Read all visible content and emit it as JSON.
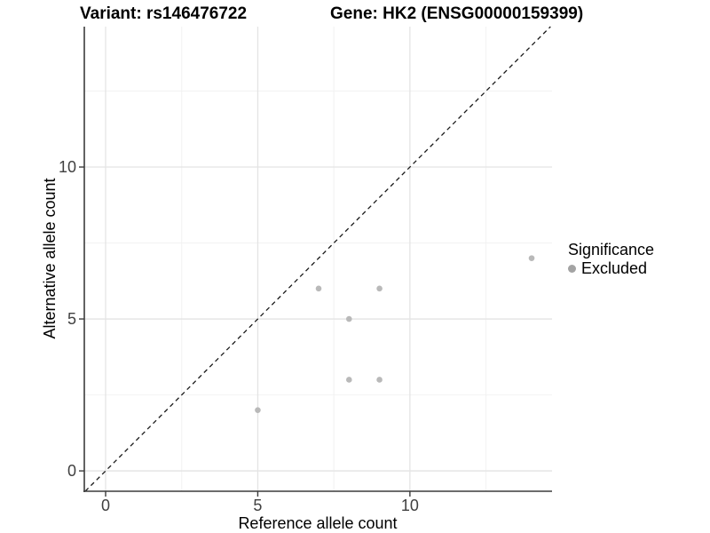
{
  "chart_data": {
    "type": "scatter",
    "title_variant": "Variant: rs146476722",
    "title_gene": "Gene: HK2 (ENSG00000159399)",
    "xlabel": "Reference allele count",
    "ylabel": "Alternative allele count",
    "xlim": [
      -0.7,
      14.67
    ],
    "ylim": [
      -0.67,
      14.62
    ],
    "x_major_ticks": [
      0,
      5,
      10
    ],
    "y_major_ticks": [
      0,
      5,
      10
    ],
    "x_minor_gridlines": [
      2.5,
      7.5,
      12.5
    ],
    "y_minor_gridlines": [
      2.5,
      7.5,
      12.5
    ],
    "grid": {
      "major": true,
      "minor": true
    },
    "series": [
      {
        "name": "Excluded",
        "color": "#b9b9b9",
        "points": [
          [
            5,
            2
          ],
          [
            7,
            6
          ],
          [
            8,
            3
          ],
          [
            8,
            5
          ],
          [
            9,
            3
          ],
          [
            9,
            6
          ],
          [
            14,
            7
          ]
        ]
      }
    ],
    "reference_line": {
      "type": "identity",
      "style": "dashed"
    },
    "legend": {
      "title": "Significance",
      "position": "right",
      "items": [
        {
          "label": "Excluded",
          "color": "#a3a3a3"
        }
      ]
    },
    "colors": {
      "point": "#b9b9b9",
      "grid_major": "#e4e4e4",
      "grid_minor": "#f2f2f2",
      "axis_line": "#3c3c3c",
      "tick_text": "#404040",
      "dashed_line": "#1a1a1a"
    }
  }
}
